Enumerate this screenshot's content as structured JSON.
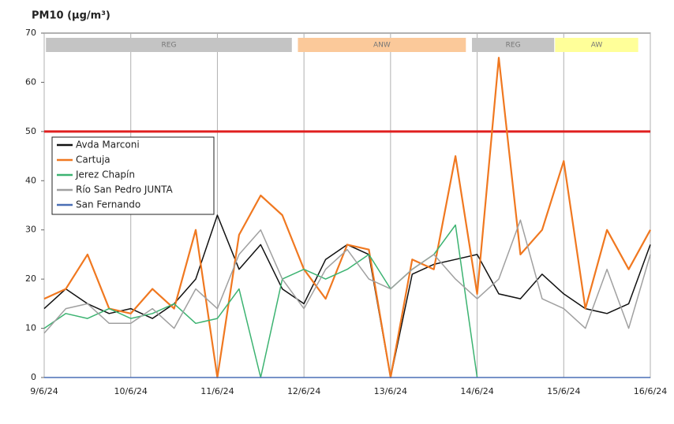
{
  "chart_data": {
    "type": "line",
    "title": "PM10 (µg/m³)",
    "x": [
      0,
      0.25,
      0.5,
      0.75,
      1,
      1.25,
      1.5,
      1.75,
      2,
      2.25,
      2.5,
      2.75,
      3,
      3.25,
      3.5,
      3.75,
      4,
      4.25,
      4.5,
      4.75,
      5,
      5.25,
      5.5,
      5.75,
      6,
      6.25,
      6.5,
      6.75,
      7
    ],
    "series": [
      {
        "name": "Avda Marconi",
        "color": "#111111",
        "values": [
          14,
          18,
          15,
          13,
          14,
          12,
          15,
          20,
          33,
          22,
          27,
          18,
          15,
          24,
          27,
          25,
          0,
          21,
          23,
          24,
          25,
          17,
          16,
          21,
          17,
          14,
          13,
          15,
          27
        ]
      },
      {
        "name": "Cartuja",
        "color": "#f07820",
        "values": [
          16,
          18,
          25,
          14,
          13,
          18,
          14,
          30,
          0,
          29,
          37,
          33,
          22,
          16,
          27,
          26,
          0,
          24,
          22,
          45,
          17,
          65,
          25,
          30,
          44,
          14,
          30,
          22,
          30
        ]
      },
      {
        "name": "Jerez Chapín",
        "color": "#3cb371",
        "values": [
          10,
          13,
          12,
          14,
          12,
          13,
          15,
          11,
          12,
          18,
          0,
          20,
          22,
          20,
          22,
          25,
          18,
          22,
          25,
          31,
          0,
          null,
          null,
          null,
          null,
          null,
          null,
          null,
          null
        ]
      },
      {
        "name": "Río San Pedro JUNTA",
        "color": "#a0a0a0",
        "values": [
          9,
          14,
          15,
          11,
          11,
          14,
          10,
          18,
          14,
          25,
          30,
          20,
          14,
          22,
          26,
          20,
          18,
          22,
          25,
          20,
          16,
          20,
          32,
          16,
          14,
          10,
          22,
          10,
          25
        ]
      },
      {
        "name": "San Fernando",
        "color": "#4a6fb5",
        "values": [
          0,
          0,
          0,
          0,
          0,
          0,
          0,
          0,
          0,
          0,
          0,
          0,
          0,
          0,
          0,
          0,
          0,
          0,
          0,
          0,
          0,
          0,
          0,
          0,
          0,
          0,
          0,
          0,
          0
        ]
      }
    ],
    "limit": 50,
    "limit_color": "#e02020",
    "bands": [
      {
        "label": "REG",
        "start": 0.02,
        "end": 2.86,
        "color": "#c4c4c4"
      },
      {
        "label": "ANW",
        "start": 2.93,
        "end": 4.87,
        "color": "#fbc99a"
      },
      {
        "label": "REG",
        "start": 4.94,
        "end": 5.89,
        "color": "#c4c4c4"
      },
      {
        "label": "AW",
        "start": 5.9,
        "end": 6.86,
        "color": "#ffff99"
      }
    ],
    "xlim": [
      0,
      7
    ],
    "xticks": [
      {
        "value": 0,
        "label": "9/6/24"
      },
      {
        "value": 1,
        "label": "10/6/24"
      },
      {
        "value": 2,
        "label": "11/6/24"
      },
      {
        "value": 3,
        "label": "12/6/24"
      },
      {
        "value": 4,
        "label": "13/6/24"
      },
      {
        "value": 5,
        "label": "14/6/24"
      },
      {
        "value": 6,
        "label": "15/6/24"
      },
      {
        "value": 7,
        "label": "16/6/24"
      }
    ],
    "ylim": [
      0,
      70
    ],
    "yticks": [
      0,
      10,
      20,
      30,
      40,
      50,
      60,
      70
    ],
    "grid": "x",
    "legend": "upper left"
  }
}
